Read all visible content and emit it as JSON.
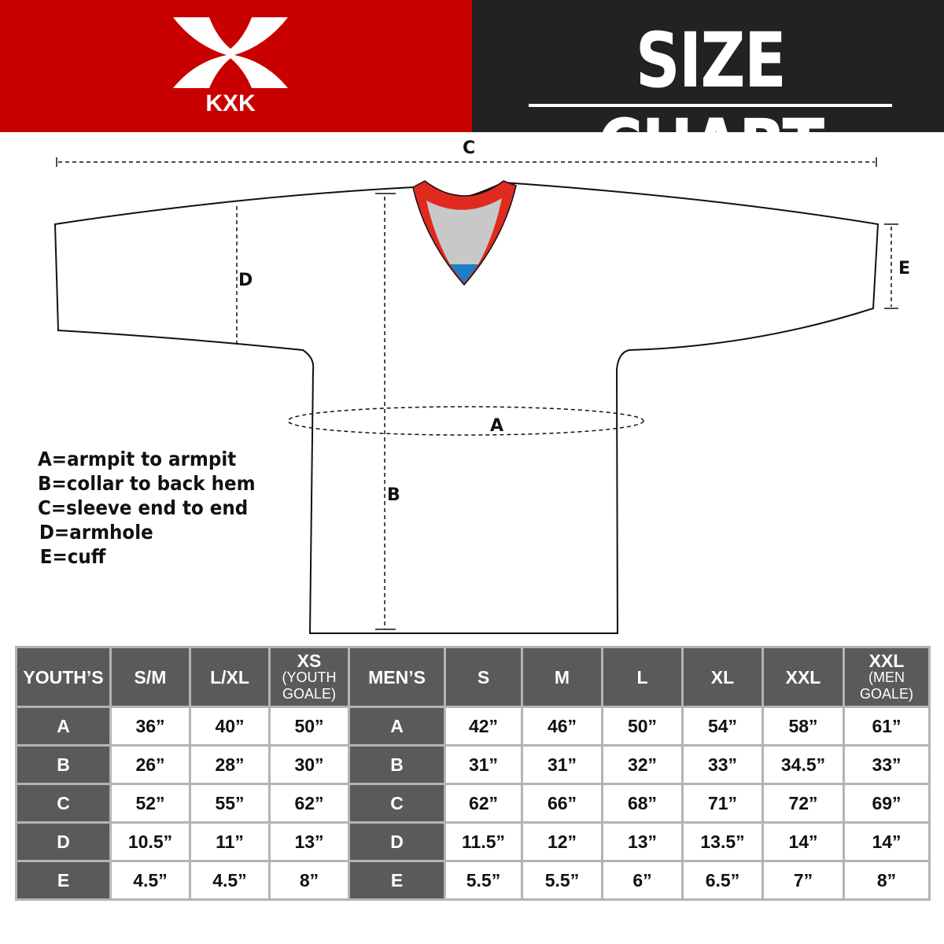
{
  "brand": {
    "name": "KXK",
    "color": "#c80000"
  },
  "title": "SIZE CHART",
  "diagram": {
    "labels": {
      "A": "A",
      "B": "B",
      "C": "C",
      "D": "D",
      "E": "E"
    },
    "colors": {
      "collar": "#e02a20",
      "collar_inner": "#c8c8c8",
      "collar_tip": "#1b7fc8"
    }
  },
  "legend": [
    "A=armpit to armpit",
    "B=collar to back hem",
    "C=sleeve end to end",
    "D=armhole",
    "E=cuff"
  ],
  "table": {
    "header": [
      {
        "main": "YOUTH’S",
        "type": "group"
      },
      {
        "main": "S/M"
      },
      {
        "main": "L/XL"
      },
      {
        "main": "XS",
        "sub": "(YOUTH GOALE)"
      },
      {
        "main": "MEN’S",
        "type": "group"
      },
      {
        "main": "S"
      },
      {
        "main": "M"
      },
      {
        "main": "L"
      },
      {
        "main": "XL"
      },
      {
        "main": "XXL"
      },
      {
        "main": "XXL",
        "sub": "(MEN GOALE)"
      }
    ],
    "rows": [
      {
        "label": "A",
        "youth": [
          "36”",
          "40”",
          "50”"
        ],
        "men": [
          "42”",
          "46”",
          "50”",
          "54”",
          "58”",
          "61”"
        ]
      },
      {
        "label": "B",
        "youth": [
          "26”",
          "28”",
          "30”"
        ],
        "men": [
          "31”",
          "31”",
          "32”",
          "33”",
          "34.5”",
          "33”"
        ]
      },
      {
        "label": "C",
        "youth": [
          "52”",
          "55”",
          "62”"
        ],
        "men": [
          "62”",
          "66”",
          "68”",
          "71”",
          "72”",
          "69”"
        ]
      },
      {
        "label": "D",
        "youth": [
          "10.5”",
          "11”",
          "13”"
        ],
        "men": [
          "11.5”",
          "12”",
          "13”",
          "13.5”",
          "14”",
          "14”"
        ]
      },
      {
        "label": "E",
        "youth": [
          "4.5”",
          "4.5”",
          "8”"
        ],
        "men": [
          "5.5”",
          "5.5”",
          "6”",
          "6.5”",
          "7”",
          "8”"
        ]
      }
    ]
  }
}
